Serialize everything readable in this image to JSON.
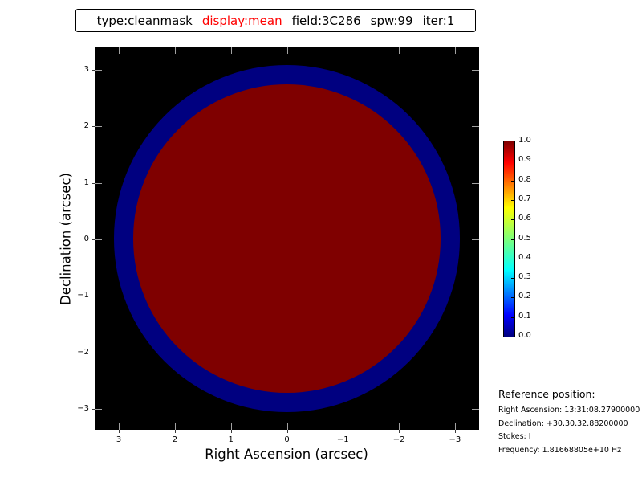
{
  "figure": {
    "background_color": "#ffffff"
  },
  "title": {
    "parts": [
      {
        "text": "type:cleanmask",
        "color": "#000000"
      },
      {
        "text": "display:mean",
        "color": "#ff0000"
      },
      {
        "text": "field:3C286",
        "color": "#000000"
      },
      {
        "text": "spw:99",
        "color": "#000000"
      },
      {
        "text": "iter:1",
        "color": "#000000"
      }
    ]
  },
  "chart_data": {
    "type": "heatmap",
    "description": "CASA clean-mask raster image: dark red disk (mask=1.0) with dark blue annular edge on black background",
    "xlabel": "Right Ascension (arcsec)",
    "ylabel": "Declination (arcsec)",
    "x_axis": {
      "direction": "reversed",
      "range_arcsec": [
        3.4,
        -3.4
      ],
      "ticks": [
        {
          "value": 3,
          "label": "3"
        },
        {
          "value": 2,
          "label": "2"
        },
        {
          "value": 1,
          "label": "1"
        },
        {
          "value": 0,
          "label": "0"
        },
        {
          "value": -1,
          "label": "−1"
        },
        {
          "value": -2,
          "label": "−2"
        },
        {
          "value": -3,
          "label": "−3"
        }
      ]
    },
    "y_axis": {
      "range_arcsec": [
        -3.4,
        3.4
      ],
      "ticks": [
        {
          "value": 3,
          "label": "3"
        },
        {
          "value": 2,
          "label": "2"
        },
        {
          "value": 1,
          "label": "1"
        },
        {
          "value": 0,
          "label": "0"
        },
        {
          "value": -1,
          "label": "−1"
        },
        {
          "value": -2,
          "label": "−2"
        },
        {
          "value": -3,
          "label": "−3"
        }
      ]
    },
    "image": {
      "background_color": "#000000",
      "regions": [
        {
          "name": "mask-outer-ring",
          "shape": "circle",
          "center_arcsec": [
            0,
            0
          ],
          "radius_arcsec": 3.08,
          "color": "#000080"
        },
        {
          "name": "mask-interior",
          "shape": "circle",
          "center_arcsec": [
            0,
            0
          ],
          "radius_arcsec": 2.74,
          "color": "#7f0000"
        }
      ]
    },
    "colorbar": {
      "colormap": "jet",
      "min": 0.0,
      "max": 1.0,
      "ticks": [
        {
          "value": 1.0,
          "label": "1.0"
        },
        {
          "value": 0.9,
          "label": "0.9"
        },
        {
          "value": 0.8,
          "label": "0.8"
        },
        {
          "value": 0.7,
          "label": "0.7"
        },
        {
          "value": 0.6,
          "label": "0.6"
        },
        {
          "value": 0.5,
          "label": "0.5"
        },
        {
          "value": 0.4,
          "label": "0.4"
        },
        {
          "value": 0.3,
          "label": "0.3"
        },
        {
          "value": 0.2,
          "label": "0.2"
        },
        {
          "value": 0.1,
          "label": "0.1"
        },
        {
          "value": 0.0,
          "label": "0.0"
        }
      ]
    }
  },
  "reference": {
    "header": "Reference position:",
    "lines": [
      "Right Ascension: 13:31:08.27900000",
      "Declination: +30.30.32.88200000",
      "Stokes: I",
      "Frequency: 1.81668805e+10 Hz"
    ]
  }
}
